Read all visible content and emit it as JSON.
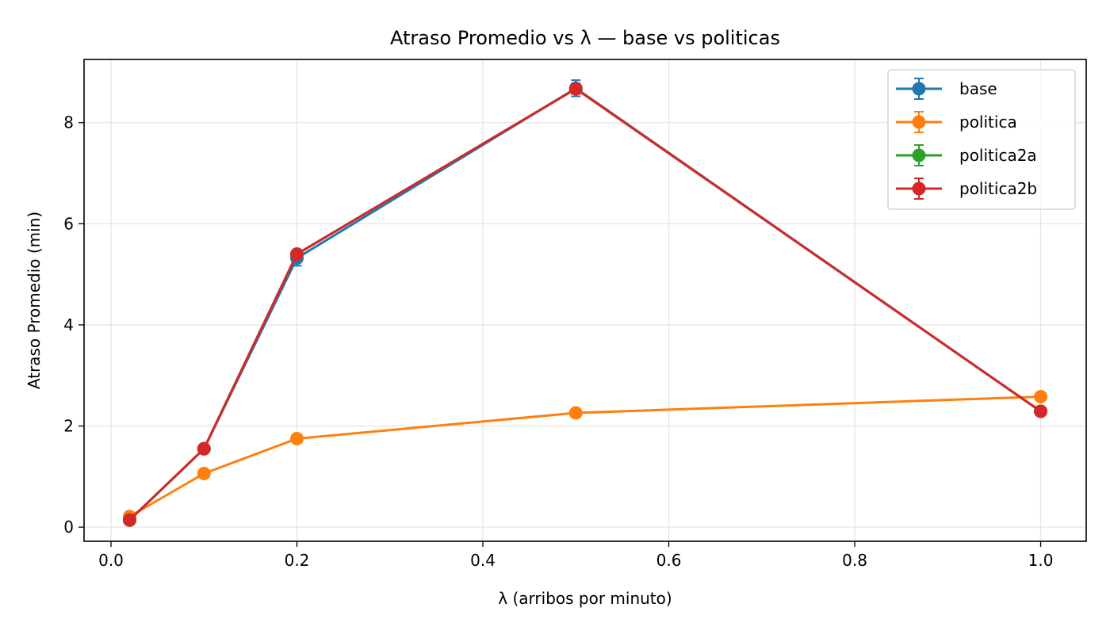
{
  "chart_data": {
    "type": "line",
    "title": "Atraso Promedio vs λ — base vs politicas",
    "xlabel": "λ (arribos por minuto)",
    "ylabel": "Atraso Promedio (min)",
    "xlim": [
      -0.029,
      1.049
    ],
    "ylim": [
      -0.28,
      9.25
    ],
    "x_ticks": [
      0.0,
      0.2,
      0.4,
      0.6,
      0.8,
      1.0
    ],
    "x_tick_labels": [
      "0.0",
      "0.2",
      "0.4",
      "0.6",
      "0.8",
      "1.0"
    ],
    "y_ticks": [
      0,
      2,
      4,
      6,
      8
    ],
    "y_tick_labels": [
      "0",
      "2",
      "4",
      "6",
      "8"
    ],
    "grid": true,
    "legend_position": "top-right",
    "x": [
      0.02,
      0.1,
      0.2,
      0.5,
      1.0
    ],
    "series": [
      {
        "name": "base",
        "color": "#1f77b4",
        "values": [
          0.14,
          1.55,
          5.32,
          8.68,
          2.29
        ],
        "errors": [
          0.03,
          0.05,
          0.15,
          0.16,
          0.05
        ]
      },
      {
        "name": "politica",
        "color": "#ff7f0e",
        "values": [
          0.21,
          1.06,
          1.75,
          2.26,
          2.58
        ],
        "errors": [
          0.02,
          0.03,
          0.04,
          0.04,
          0.05
        ]
      },
      {
        "name": "politica2a",
        "color": "#2ca02c",
        "values": [
          0.14,
          1.55,
          5.4,
          8.67,
          2.29
        ],
        "errors": [
          0.03,
          0.05,
          0.08,
          0.1,
          0.05
        ]
      },
      {
        "name": "politica2b",
        "color": "#d62728",
        "values": [
          0.14,
          1.55,
          5.4,
          8.67,
          2.29
        ],
        "errors": [
          0.03,
          0.05,
          0.08,
          0.1,
          0.05
        ]
      }
    ]
  }
}
